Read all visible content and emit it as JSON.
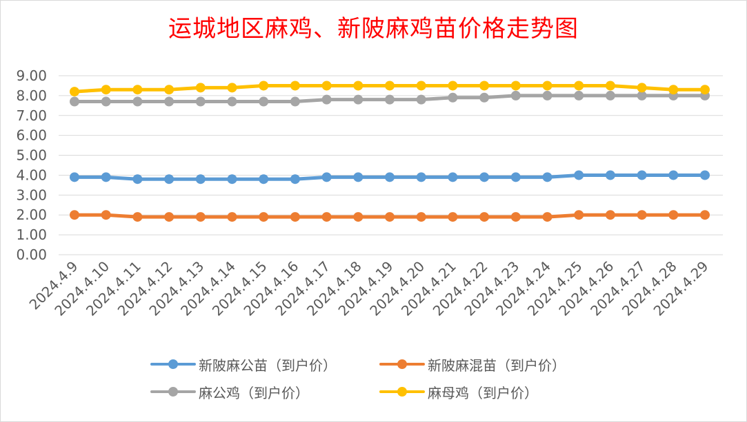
{
  "chart_data": {
    "type": "line",
    "title": "运城地区麻鸡、新陂麻鸡苗价格走势图",
    "xlabel": "",
    "ylabel": "",
    "ylim": [
      0,
      9
    ],
    "ytick_step": 1,
    "ytick_decimals": 2,
    "grid": true,
    "legend_position": "bottom",
    "categories": [
      "2024.4.9",
      "2024.4.10",
      "2024.4.11",
      "2024.4.12",
      "2024.4.13",
      "2024.4.14",
      "2024.4.15",
      "2024.4.16",
      "2024.4.17",
      "2024.4.18",
      "2024.4.19",
      "2024.4.20",
      "2024.4.21",
      "2024.4.22",
      "2024.4.23",
      "2024.4.24",
      "2024.4.25",
      "2024.4.26",
      "2024.4.27",
      "2024.4.28",
      "2024.4.29"
    ],
    "series": [
      {
        "name": "新陂麻公苗（到户价）",
        "color": "#5b9bd5",
        "values": [
          3.9,
          3.9,
          3.8,
          3.8,
          3.8,
          3.8,
          3.8,
          3.8,
          3.9,
          3.9,
          3.9,
          3.9,
          3.9,
          3.9,
          3.9,
          3.9,
          4.0,
          4.0,
          4.0,
          4.0,
          4.0
        ]
      },
      {
        "name": "新陂麻混苗（到户价）",
        "color": "#ed7d31",
        "values": [
          2.0,
          2.0,
          1.9,
          1.9,
          1.9,
          1.9,
          1.9,
          1.9,
          1.9,
          1.9,
          1.9,
          1.9,
          1.9,
          1.9,
          1.9,
          1.9,
          2.0,
          2.0,
          2.0,
          2.0,
          2.0
        ]
      },
      {
        "name": "麻公鸡（到户价）",
        "color": "#a5a5a5",
        "values": [
          7.7,
          7.7,
          7.7,
          7.7,
          7.7,
          7.7,
          7.7,
          7.7,
          7.8,
          7.8,
          7.8,
          7.8,
          7.9,
          7.9,
          8.0,
          8.0,
          8.0,
          8.0,
          8.0,
          8.0,
          8.0
        ]
      },
      {
        "name": "麻母鸡（到户价）",
        "color": "#ffc000",
        "values": [
          8.2,
          8.3,
          8.3,
          8.3,
          8.4,
          8.4,
          8.5,
          8.5,
          8.5,
          8.5,
          8.5,
          8.5,
          8.5,
          8.5,
          8.5,
          8.5,
          8.5,
          8.5,
          8.4,
          8.3,
          8.3
        ]
      }
    ]
  }
}
